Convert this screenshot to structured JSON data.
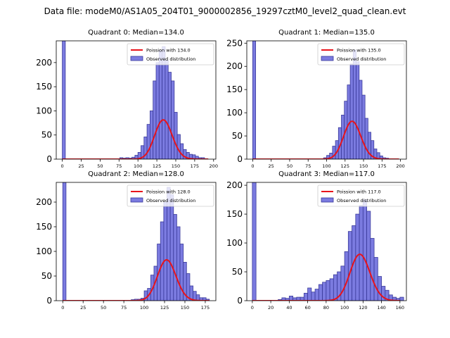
{
  "suptitle": "Data file: modeM0/AS1A05_204T01_9000002856_19297cztM0_level2_quad_clean.evt",
  "colors": {
    "bar_fill": "#7b7be0",
    "bar_edge": "#3a3a9a",
    "fit_line": "#e8131b",
    "axis": "#000000"
  },
  "chart_data": [
    {
      "type": "bar",
      "title": "Quadrant 0: Median=134.0",
      "median": 134.0,
      "legend": [
        "Poission with 134.0",
        "Observed distribution"
      ],
      "legend_position": "top-right",
      "xlim": [
        -8,
        203
      ],
      "ylim": [
        0,
        245
      ],
      "xticks": [
        0,
        25,
        50,
        75,
        100,
        125,
        150,
        175,
        200
      ],
      "yticks": [
        0,
        50,
        100,
        150,
        200
      ],
      "bin_width": 4,
      "bins": [
        [
          0,
          245
        ],
        [
          76,
          3
        ],
        [
          80,
          2
        ],
        [
          84,
          3
        ],
        [
          88,
          2
        ],
        [
          92,
          4
        ],
        [
          96,
          8
        ],
        [
          100,
          14
        ],
        [
          104,
          28
        ],
        [
          108,
          46
        ],
        [
          112,
          72
        ],
        [
          116,
          100
        ],
        [
          120,
          162
        ],
        [
          124,
          200
        ],
        [
          128,
          225
        ],
        [
          132,
          233
        ],
        [
          136,
          205
        ],
        [
          140,
          180
        ],
        [
          144,
          162
        ],
        [
          148,
          97
        ],
        [
          152,
          51
        ],
        [
          156,
          32
        ],
        [
          160,
          20
        ],
        [
          164,
          14
        ],
        [
          168,
          10
        ],
        [
          172,
          9
        ],
        [
          176,
          6
        ],
        [
          180,
          3
        ],
        [
          184,
          3
        ],
        [
          188,
          1
        ]
      ],
      "fit": {
        "lambda": 134.0,
        "scale": 2360,
        "xrange": [
          0,
          193
        ]
      }
    },
    {
      "type": "bar",
      "title": "Quadrant 1: Median=135.0",
      "median": 135.0,
      "legend": [
        "Poission with 135.0",
        "Observed distribution"
      ],
      "legend_position": "top-right",
      "xlim": [
        -8,
        208
      ],
      "ylim": [
        0,
        255
      ],
      "xticks": [
        0,
        25,
        50,
        75,
        100,
        125,
        150,
        175,
        200
      ],
      "yticks": [
        0,
        50,
        100,
        150,
        200,
        250
      ],
      "bin_width": 4,
      "bins": [
        [
          0,
          255
        ],
        [
          96,
          3
        ],
        [
          100,
          8
        ],
        [
          104,
          13
        ],
        [
          108,
          28
        ],
        [
          112,
          40
        ],
        [
          116,
          68
        ],
        [
          120,
          95
        ],
        [
          124,
          125
        ],
        [
          128,
          160
        ],
        [
          132,
          205
        ],
        [
          136,
          235
        ],
        [
          140,
          210
        ],
        [
          144,
          170
        ],
        [
          148,
          138
        ],
        [
          152,
          88
        ],
        [
          156,
          58
        ],
        [
          160,
          40
        ],
        [
          164,
          22
        ],
        [
          168,
          14
        ],
        [
          172,
          7
        ],
        [
          176,
          3
        ],
        [
          180,
          2
        ]
      ],
      "fit": {
        "lambda": 135.0,
        "scale": 2380,
        "xrange": [
          0,
          198
        ]
      }
    },
    {
      "type": "bar",
      "title": "Quadrant 2: Median=128.0",
      "median": 128.0,
      "legend": [
        "Poission with 128.0",
        "Observed distribution"
      ],
      "legend_position": "top-right",
      "xlim": [
        -8,
        188
      ],
      "ylim": [
        0,
        240
      ],
      "xticks": [
        0,
        25,
        50,
        75,
        100,
        125,
        150,
        175
      ],
      "yticks": [
        0,
        50,
        100,
        150,
        200
      ],
      "bin_width": 4,
      "bins": [
        [
          0,
          240
        ],
        [
          84,
          2
        ],
        [
          88,
          3
        ],
        [
          92,
          3
        ],
        [
          96,
          5
        ],
        [
          100,
          20
        ],
        [
          104,
          25
        ],
        [
          108,
          52
        ],
        [
          112,
          70
        ],
        [
          116,
          115
        ],
        [
          120,
          160
        ],
        [
          124,
          200
        ],
        [
          128,
          230
        ],
        [
          132,
          215
        ],
        [
          136,
          175
        ],
        [
          140,
          150
        ],
        [
          144,
          115
        ],
        [
          148,
          78
        ],
        [
          152,
          55
        ],
        [
          156,
          30
        ],
        [
          160,
          19
        ],
        [
          164,
          12
        ],
        [
          168,
          6
        ],
        [
          172,
          6
        ],
        [
          176,
          3
        ]
      ],
      "fit": {
        "lambda": 128.0,
        "scale": 2350,
        "xrange": [
          0,
          180
        ]
      }
    },
    {
      "type": "bar",
      "title": "Quadrant 3: Median=117.0",
      "median": 117.0,
      "legend": [
        "Poission with 117.0",
        "Observed distribution"
      ],
      "legend_position": "top-right",
      "xlim": [
        -6,
        167
      ],
      "ylim": [
        0,
        205
      ],
      "xticks": [
        0,
        20,
        40,
        60,
        80,
        100,
        120,
        140,
        160
      ],
      "yticks": [
        0,
        50,
        100,
        150,
        200
      ],
      "bin_width": 4,
      "bins": [
        [
          0,
          205
        ],
        [
          28,
          2
        ],
        [
          32,
          5
        ],
        [
          36,
          4
        ],
        [
          40,
          8
        ],
        [
          44,
          5
        ],
        [
          48,
          6
        ],
        [
          52,
          6
        ],
        [
          56,
          13
        ],
        [
          60,
          22
        ],
        [
          64,
          15
        ],
        [
          68,
          20
        ],
        [
          72,
          28
        ],
        [
          76,
          32
        ],
        [
          80,
          35
        ],
        [
          84,
          38
        ],
        [
          88,
          45
        ],
        [
          92,
          50
        ],
        [
          96,
          60
        ],
        [
          100,
          85
        ],
        [
          104,
          120
        ],
        [
          108,
          130
        ],
        [
          112,
          150
        ],
        [
          116,
          165
        ],
        [
          120,
          175
        ],
        [
          124,
          155
        ],
        [
          128,
          108
        ],
        [
          132,
          75
        ],
        [
          136,
          42
        ],
        [
          140,
          25
        ],
        [
          144,
          18
        ],
        [
          148,
          10
        ],
        [
          152,
          6
        ],
        [
          156,
          4
        ],
        [
          160,
          6
        ]
      ],
      "fit": {
        "lambda": 117.0,
        "scale": 2180,
        "xrange": [
          0,
          160
        ]
      }
    }
  ]
}
